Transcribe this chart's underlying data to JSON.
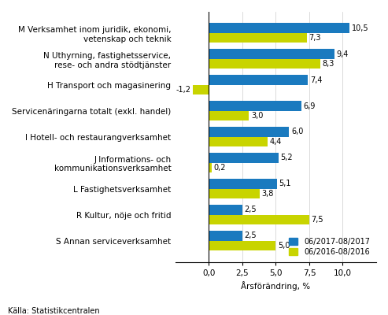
{
  "categories": [
    "M Verksamhet inom juridik, ekonomi,\nvetenskap och teknik",
    "N Uthyrning, fastighetsservice,\nrese- och andra stödtjänster",
    "H Transport och magasinering",
    "Servicenäringarna totalt (exkl. handel)",
    "I Hotell- och restaurangverksamhet",
    "J Informations- och\nkommunikationsverksamhet",
    "L Fastighetsverksamhet",
    "R Kultur, nöje och fritid",
    "S Annan serviceverksamhet"
  ],
  "values_2017": [
    10.5,
    9.4,
    7.4,
    6.9,
    6.0,
    5.2,
    5.1,
    2.5,
    2.5
  ],
  "values_2016": [
    7.3,
    8.3,
    -1.2,
    3.0,
    4.4,
    0.2,
    3.8,
    7.5,
    5.0
  ],
  "color_2017": "#1a7abf",
  "color_2016": "#c8d400",
  "xlabel": "Årsförändring, %",
  "legend_2017": "06/2017-08/2017",
  "legend_2016": "06/2016-08/2016",
  "source": "Källa: Statistikcentralen",
  "xlim": [
    -2.5,
    12.5
  ],
  "xticks": [
    0.0,
    2.5,
    5.0,
    7.5,
    10.0
  ],
  "bar_height": 0.38,
  "label_fontsize": 7.0,
  "axis_fontsize": 7.5,
  "source_fontsize": 7.0,
  "category_fontsize": 7.5
}
